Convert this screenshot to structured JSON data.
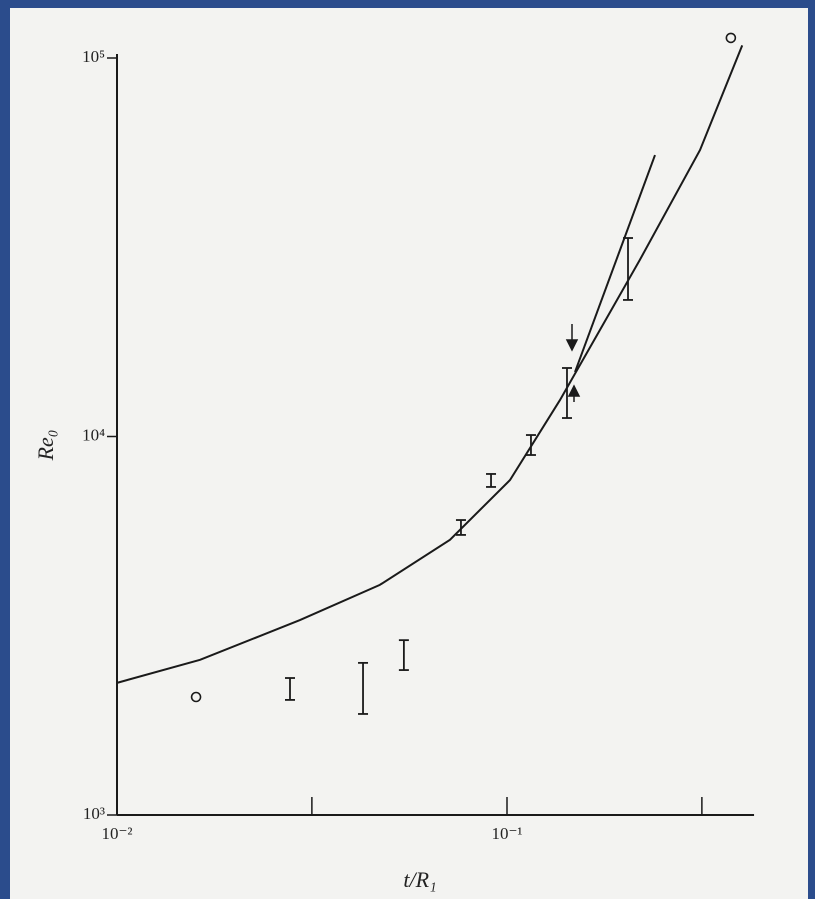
{
  "chart_data": {
    "type": "scatter",
    "x_label": "t/R₁",
    "y_label": "Re₀",
    "log_x": true,
    "log_y": true,
    "xlim": [
      0.01,
      0.43
    ],
    "ylim": [
      1000,
      100000
    ],
    "xticks": [
      {
        "value": 0.01,
        "label": "10⁻²"
      },
      {
        "value": 0.1,
        "label": "10⁻¹"
      }
    ],
    "xticks_minor": [
      0.0316,
      0.316
    ],
    "yticks": [
      {
        "value": 1000,
        "label": "10³"
      },
      {
        "value": 10000,
        "label": "10⁴"
      },
      {
        "value": 100000,
        "label": "10⁵"
      }
    ],
    "curve": {
      "x": [
        0.01,
        0.01633,
        0.02945,
        0.0472,
        0.0714,
        0.1018,
        0.1367,
        0.173,
        0.219,
        0.3126,
        0.401
      ],
      "values": [
        2234,
        2570,
        3273,
        4055,
        5333,
        7674,
        12480,
        19100,
        29260,
        57150,
        108000
      ]
    },
    "branch": {
      "x": [
        0.1494,
        0.2396
      ],
      "values": [
        14800,
        55400
      ]
    },
    "points": {
      "x": [
        0.01595,
        0.375
      ],
      "values": [
        2050,
        113000
      ]
    },
    "error_bars": {
      "x": [
        0.02777,
        0.04274,
        0.0544,
        0.0762,
        0.091,
        0.1152,
        0.1425,
        0.2043
      ],
      "lows": [
        2014,
        1849,
        2415,
        5495,
        7357,
        8935,
        11190,
        22950
      ],
      "highs": [
        2301,
        2523,
        2897,
        6016,
        7962,
        10090,
        15170,
        33450
      ]
    },
    "color": "#1a1a1a"
  }
}
